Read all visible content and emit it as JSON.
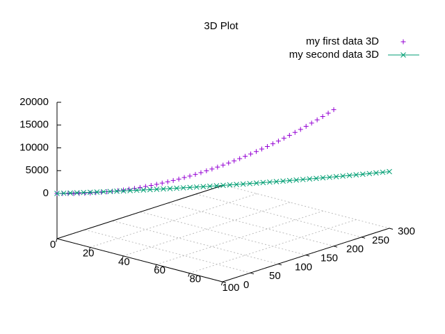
{
  "chart_data": {
    "type": "scatter3d",
    "title": "3D Plot",
    "xlim": [
      0,
      100
    ],
    "xticks": [
      0,
      20,
      40,
      60,
      80,
      100
    ],
    "ylim": [
      0,
      300
    ],
    "yticks": [
      0,
      50,
      100,
      150,
      200,
      250,
      300
    ],
    "zlim": [
      0,
      20000
    ],
    "zticks": [
      0,
      5000,
      10000,
      15000,
      20000
    ],
    "grid": true,
    "legend": "top-right",
    "series": [
      {
        "name": "my first data 3D",
        "color": "#9400d3",
        "marker": "plus",
        "line": false,
        "x": [
          0,
          2,
          4,
          6,
          8,
          10,
          12,
          14,
          16,
          18,
          20,
          22,
          24,
          26,
          28,
          30,
          32,
          34,
          36,
          38,
          40,
          42,
          44,
          46,
          48,
          50,
          52,
          54,
          56,
          58,
          60,
          62,
          64,
          66,
          68,
          70,
          72,
          74,
          76,
          78,
          80,
          82,
          84,
          86,
          88,
          90,
          92,
          94,
          96,
          98,
          100
        ],
        "y": [
          0,
          4,
          8,
          12,
          16,
          20,
          24,
          28,
          32,
          36,
          40,
          44,
          48,
          52,
          56,
          60,
          64,
          68,
          72,
          76,
          80,
          84,
          88,
          92,
          96,
          100,
          104,
          108,
          112,
          116,
          120,
          124,
          128,
          132,
          136,
          140,
          144,
          148,
          152,
          156,
          160,
          164,
          168,
          172,
          176,
          180,
          184,
          188,
          192,
          196,
          200
        ],
        "z": [
          0,
          8,
          32,
          72,
          128,
          200,
          288,
          392,
          512,
          648,
          800,
          968,
          1152,
          1352,
          1568,
          1800,
          2048,
          2312,
          2592,
          2888,
          3200,
          3528,
          3872,
          4232,
          4608,
          5000,
          5408,
          5832,
          6272,
          6728,
          7200,
          7688,
          8192,
          8712,
          9248,
          9800,
          10368,
          10952,
          11552,
          12168,
          12800,
          13448,
          14112,
          14792,
          15488,
          16200,
          16928,
          17672,
          18432,
          19208,
          20000
        ]
      },
      {
        "name": "my second data 3D",
        "color": "#009e73",
        "marker": "cross",
        "line": true,
        "x": [
          0,
          2,
          4,
          6,
          8,
          10,
          12,
          14,
          16,
          18,
          20,
          22,
          24,
          26,
          28,
          30,
          32,
          34,
          36,
          38,
          40,
          42,
          44,
          46,
          48,
          50,
          52,
          54,
          56,
          58,
          60,
          62,
          64,
          66,
          68,
          70,
          72,
          74,
          76,
          78,
          80,
          82,
          84,
          86,
          88,
          90,
          92,
          94,
          96,
          98,
          100
        ],
        "y": [
          0,
          6,
          12,
          18,
          24,
          30,
          36,
          42,
          48,
          54,
          60,
          66,
          72,
          78,
          84,
          90,
          96,
          102,
          108,
          114,
          120,
          126,
          132,
          138,
          144,
          150,
          156,
          162,
          168,
          174,
          180,
          186,
          192,
          198,
          204,
          210,
          216,
          222,
          228,
          234,
          240,
          246,
          252,
          258,
          264,
          270,
          276,
          282,
          288,
          294,
          300
        ],
        "z": [
          0,
          1,
          4,
          9,
          16,
          25,
          36,
          49,
          64,
          81,
          100,
          121,
          144,
          169,
          196,
          225,
          256,
          289,
          324,
          361,
          400,
          441,
          484,
          529,
          576,
          625,
          676,
          729,
          784,
          841,
          900,
          961,
          1024,
          1089,
          1156,
          1225,
          1296,
          1369,
          1444,
          1521,
          1600,
          1681,
          1764,
          1849,
          1936,
          2025,
          2116,
          2209,
          2304,
          2401,
          2500
        ]
      }
    ]
  }
}
